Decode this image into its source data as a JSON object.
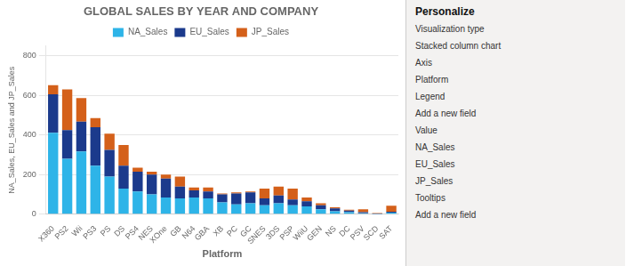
{
  "chart_data": {
    "type": "bar",
    "title": "GLOBAL SALES BY YEAR AND COMPANY",
    "xlabel": "Platform",
    "ylabel": "NA_Sales, EU_Sales and JP_Sales",
    "categories": [
      "X360",
      "PS2",
      "Wii",
      "PS3",
      "PS",
      "DS",
      "PS4",
      "NES",
      "XOne",
      "GB",
      "N64",
      "GBA",
      "XB",
      "PC",
      "GC",
      "SNES",
      "3DS",
      "PSP",
      "WiiU",
      "GEN",
      "NS",
      "DC",
      "PSV",
      "SCD",
      "SAT"
    ],
    "series": [
      {
        "name": "NA_Sales",
        "color": "#2EB4E8",
        "values": [
          411,
          280,
          317,
          245,
          190,
          130,
          115,
          100,
          85,
          80,
          85,
          80,
          60,
          50,
          55,
          45,
          55,
          45,
          40,
          25,
          15,
          10,
          5,
          2,
          8
        ]
      },
      {
        "name": "EU_Sales",
        "color": "#1B3A8C",
        "values": [
          195,
          145,
          150,
          195,
          135,
          115,
          100,
          100,
          95,
          60,
          35,
          35,
          40,
          55,
          55,
          35,
          40,
          30,
          25,
          20,
          15,
          8,
          5,
          2,
          5
        ]
      },
      {
        "name": "JP_Sales",
        "color": "#D4601A",
        "values": [
          46,
          205,
          120,
          45,
          82,
          105,
          20,
          15,
          20,
          50,
          15,
          20,
          5,
          5,
          5,
          50,
          45,
          55,
          20,
          10,
          5,
          5,
          15,
          2,
          30
        ]
      }
    ],
    "stacked": true,
    "ylim": [
      0,
      850
    ],
    "yticks": [
      0,
      200,
      400,
      600,
      800
    ],
    "grid": true,
    "legend": "top",
    "annotations": [
      "Personalize",
      "Visualization type",
      "Stacked column chart",
      "Axis",
      "Platform",
      "Legend",
      "Add a new field",
      "Value",
      "NA_Sales",
      "EU_Sales",
      "JP_Sales",
      "Tooltips",
      "Add a new field"
    ]
  }
}
